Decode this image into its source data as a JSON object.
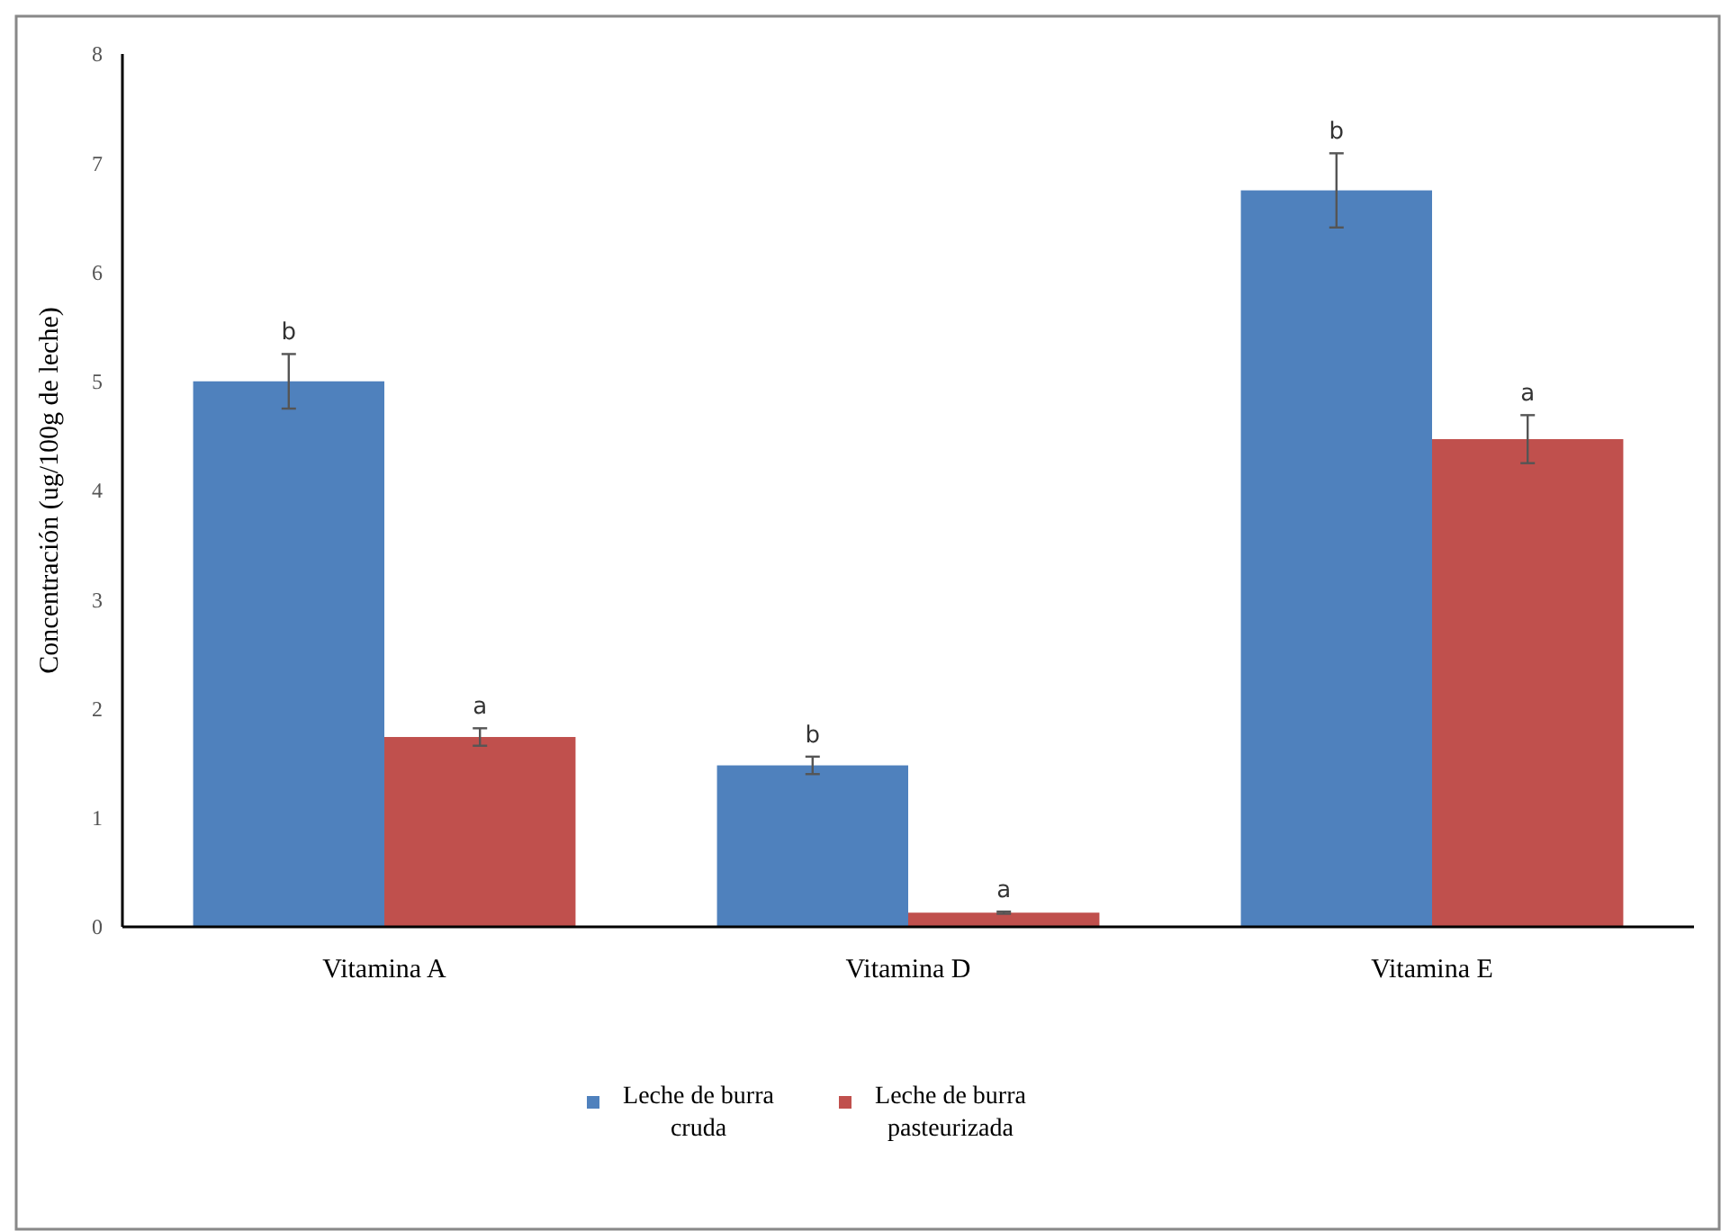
{
  "chart_data": {
    "type": "bar",
    "ylabel": "Concentración (ug/100g de leche)",
    "categories": [
      "Vitamina A",
      "Vitamina D",
      "Vitamina E"
    ],
    "series": [
      {
        "name": "Leche de burra cruda",
        "color": "#4f81bd",
        "values": [
          5.0,
          1.48,
          6.75
        ],
        "errors": [
          0.25,
          0.08,
          0.34
        ],
        "value_labels": [
          "b",
          "b",
          "b"
        ]
      },
      {
        "name": "Leche de burra pasteurizada",
        "color": "#c0504d",
        "values": [
          1.74,
          0.13,
          4.47
        ],
        "errors": [
          0.08,
          0.01,
          0.22
        ],
        "value_labels": [
          "a",
          "a",
          "a"
        ]
      }
    ],
    "ylim": [
      0,
      8
    ],
    "yticks": [
      0,
      1,
      2,
      3,
      4,
      5,
      6,
      7,
      8
    ],
    "grid": false,
    "legend": "bottom"
  }
}
